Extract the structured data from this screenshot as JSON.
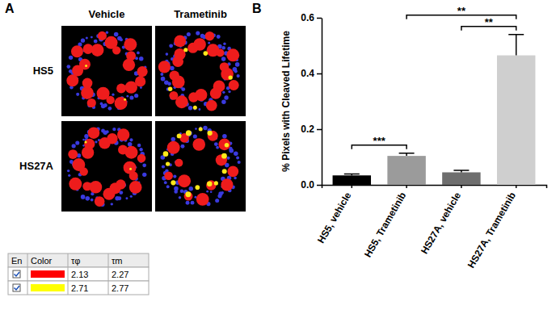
{
  "chart_data": {
    "type": "bar",
    "y_label": "% Pixels with Cleaved Lifetime",
    "categories": [
      "HS5, vehicle",
      "HS5, Trametinib",
      "HS27A, vehicle",
      "HS27A, Trametinib"
    ],
    "values": [
      0.034,
      0.104,
      0.045,
      0.465
    ],
    "errors": [
      0.005,
      0.01,
      0.007,
      0.075
    ],
    "colors": [
      "#000000",
      "#9b9b9b",
      "#6e6e6e",
      "#cfcfcf"
    ],
    "ylim": [
      0,
      0.6
    ],
    "yticks": [
      {
        "value": 0,
        "label": "0.0"
      },
      0.2,
      0.4,
      0.6
    ],
    "annotations": [
      {
        "from": 0,
        "to": 1,
        "label": "***"
      },
      {
        "from": 2,
        "to": 3,
        "label": "**"
      },
      {
        "from": 1,
        "to": 3,
        "label": "**"
      }
    ]
  },
  "figure": {
    "panel_labels": [
      "A",
      "B"
    ],
    "columns": [
      "Vehicle",
      "Trametinib"
    ],
    "rows": [
      "HS5",
      "HS27A"
    ],
    "lifetime_table": {
      "header": [
        "En",
        "Color",
        "τφ",
        "τm"
      ],
      "rows": [
        {
          "color": "#ff0000",
          "tau_phi": 2.13,
          "tau_m": 2.27
        },
        {
          "color": "#ffff00",
          "tau_phi": 2.71,
          "tau_m": 2.77
        }
      ]
    }
  }
}
